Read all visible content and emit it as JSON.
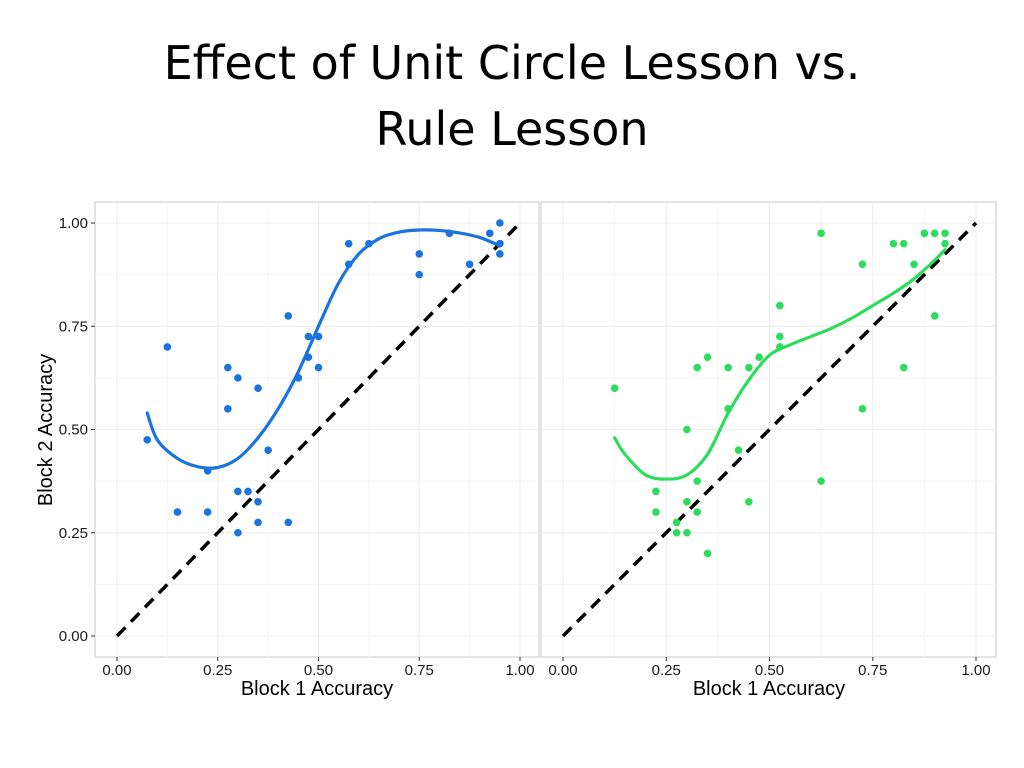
{
  "slide": {
    "title_line1": "Effect of Unit Circle Lesson vs.",
    "title_line2": "Rule Lesson"
  },
  "chart_data": [
    {
      "type": "scatter",
      "title": "",
      "xlabel": "Block 1 Accuracy",
      "ylabel": "Block 2 Accuracy",
      "xlim": [
        0,
        1
      ],
      "ylim": [
        0,
        1
      ],
      "x_ticks": [
        "0.00",
        "0.25",
        "0.50",
        "0.75",
        "1.00"
      ],
      "y_ticks": [
        "0.00",
        "0.25",
        "0.50",
        "0.75",
        "1.00"
      ],
      "grid": true,
      "reference_line": {
        "style": "dashed",
        "color": "#000000",
        "from": [
          0,
          0
        ],
        "to": [
          1,
          1
        ]
      },
      "series": [
        {
          "color": "#1a73e0",
          "points": [
            [
              0.075,
              0.475
            ],
            [
              0.125,
              0.7
            ],
            [
              0.15,
              0.3
            ],
            [
              0.225,
              0.4
            ],
            [
              0.225,
              0.3
            ],
            [
              0.275,
              0.65
            ],
            [
              0.275,
              0.55
            ],
            [
              0.3,
              0.625
            ],
            [
              0.3,
              0.35
            ],
            [
              0.3,
              0.25
            ],
            [
              0.325,
              0.35
            ],
            [
              0.35,
              0.6
            ],
            [
              0.35,
              0.325
            ],
            [
              0.35,
              0.275
            ],
            [
              0.375,
              0.45
            ],
            [
              0.425,
              0.775
            ],
            [
              0.425,
              0.275
            ],
            [
              0.45,
              0.625
            ],
            [
              0.475,
              0.725
            ],
            [
              0.475,
              0.675
            ],
            [
              0.5,
              0.725
            ],
            [
              0.5,
              0.65
            ],
            [
              0.575,
              0.95
            ],
            [
              0.575,
              0.9
            ],
            [
              0.625,
              0.95
            ],
            [
              0.75,
              0.925
            ],
            [
              0.75,
              0.875
            ],
            [
              0.825,
              0.975
            ],
            [
              0.875,
              0.9
            ],
            [
              0.925,
              0.975
            ],
            [
              0.95,
              1.0
            ],
            [
              0.95,
              0.95
            ],
            [
              0.95,
              0.925
            ]
          ],
          "smooth": [
            [
              0.075,
              0.54
            ],
            [
              0.1,
              0.475
            ],
            [
              0.15,
              0.43
            ],
            [
              0.2,
              0.41
            ],
            [
              0.25,
              0.408
            ],
            [
              0.3,
              0.43
            ],
            [
              0.35,
              0.48
            ],
            [
              0.4,
              0.55
            ],
            [
              0.45,
              0.64
            ],
            [
              0.5,
              0.75
            ],
            [
              0.55,
              0.855
            ],
            [
              0.6,
              0.925
            ],
            [
              0.65,
              0.962
            ],
            [
              0.7,
              0.978
            ],
            [
              0.75,
              0.983
            ],
            [
              0.8,
              0.982
            ],
            [
              0.85,
              0.976
            ],
            [
              0.9,
              0.965
            ],
            [
              0.95,
              0.945
            ]
          ]
        }
      ]
    },
    {
      "type": "scatter",
      "title": "",
      "xlabel": "Block 1 Accuracy",
      "ylabel": "",
      "xlim": [
        0,
        1
      ],
      "ylim": [
        0,
        1
      ],
      "x_ticks": [
        "0.00",
        "0.25",
        "0.50",
        "0.75",
        "1.00"
      ],
      "grid": true,
      "reference_line": {
        "style": "dashed",
        "color": "#000000",
        "from": [
          0,
          0
        ],
        "to": [
          1,
          1
        ]
      },
      "series": [
        {
          "color": "#2ddc5c",
          "points": [
            [
              0.125,
              0.6
            ],
            [
              0.225,
              0.35
            ],
            [
              0.225,
              0.3
            ],
            [
              0.275,
              0.275
            ],
            [
              0.275,
              0.25
            ],
            [
              0.3,
              0.5
            ],
            [
              0.3,
              0.325
            ],
            [
              0.3,
              0.25
            ],
            [
              0.325,
              0.65
            ],
            [
              0.325,
              0.375
            ],
            [
              0.325,
              0.3
            ],
            [
              0.35,
              0.675
            ],
            [
              0.35,
              0.2
            ],
            [
              0.4,
              0.65
            ],
            [
              0.4,
              0.55
            ],
            [
              0.425,
              0.45
            ],
            [
              0.45,
              0.65
            ],
            [
              0.45,
              0.325
            ],
            [
              0.475,
              0.675
            ],
            [
              0.525,
              0.8
            ],
            [
              0.525,
              0.725
            ],
            [
              0.525,
              0.7
            ],
            [
              0.625,
              0.975
            ],
            [
              0.625,
              0.375
            ],
            [
              0.725,
              0.9
            ],
            [
              0.725,
              0.55
            ],
            [
              0.8,
              0.95
            ],
            [
              0.825,
              0.95
            ],
            [
              0.825,
              0.65
            ],
            [
              0.85,
              0.9
            ],
            [
              0.875,
              0.975
            ],
            [
              0.9,
              0.975
            ],
            [
              0.9,
              0.775
            ],
            [
              0.925,
              0.975
            ],
            [
              0.925,
              0.95
            ]
          ],
          "smooth": [
            [
              0.125,
              0.48
            ],
            [
              0.15,
              0.44
            ],
            [
              0.2,
              0.39
            ],
            [
              0.25,
              0.38
            ],
            [
              0.3,
              0.39
            ],
            [
              0.35,
              0.44
            ],
            [
              0.4,
              0.54
            ],
            [
              0.45,
              0.62
            ],
            [
              0.5,
              0.68
            ],
            [
              0.55,
              0.705
            ],
            [
              0.6,
              0.725
            ],
            [
              0.65,
              0.745
            ],
            [
              0.7,
              0.77
            ],
            [
              0.75,
              0.8
            ],
            [
              0.8,
              0.83
            ],
            [
              0.85,
              0.865
            ],
            [
              0.9,
              0.91
            ],
            [
              0.925,
              0.935
            ]
          ]
        }
      ]
    }
  ]
}
